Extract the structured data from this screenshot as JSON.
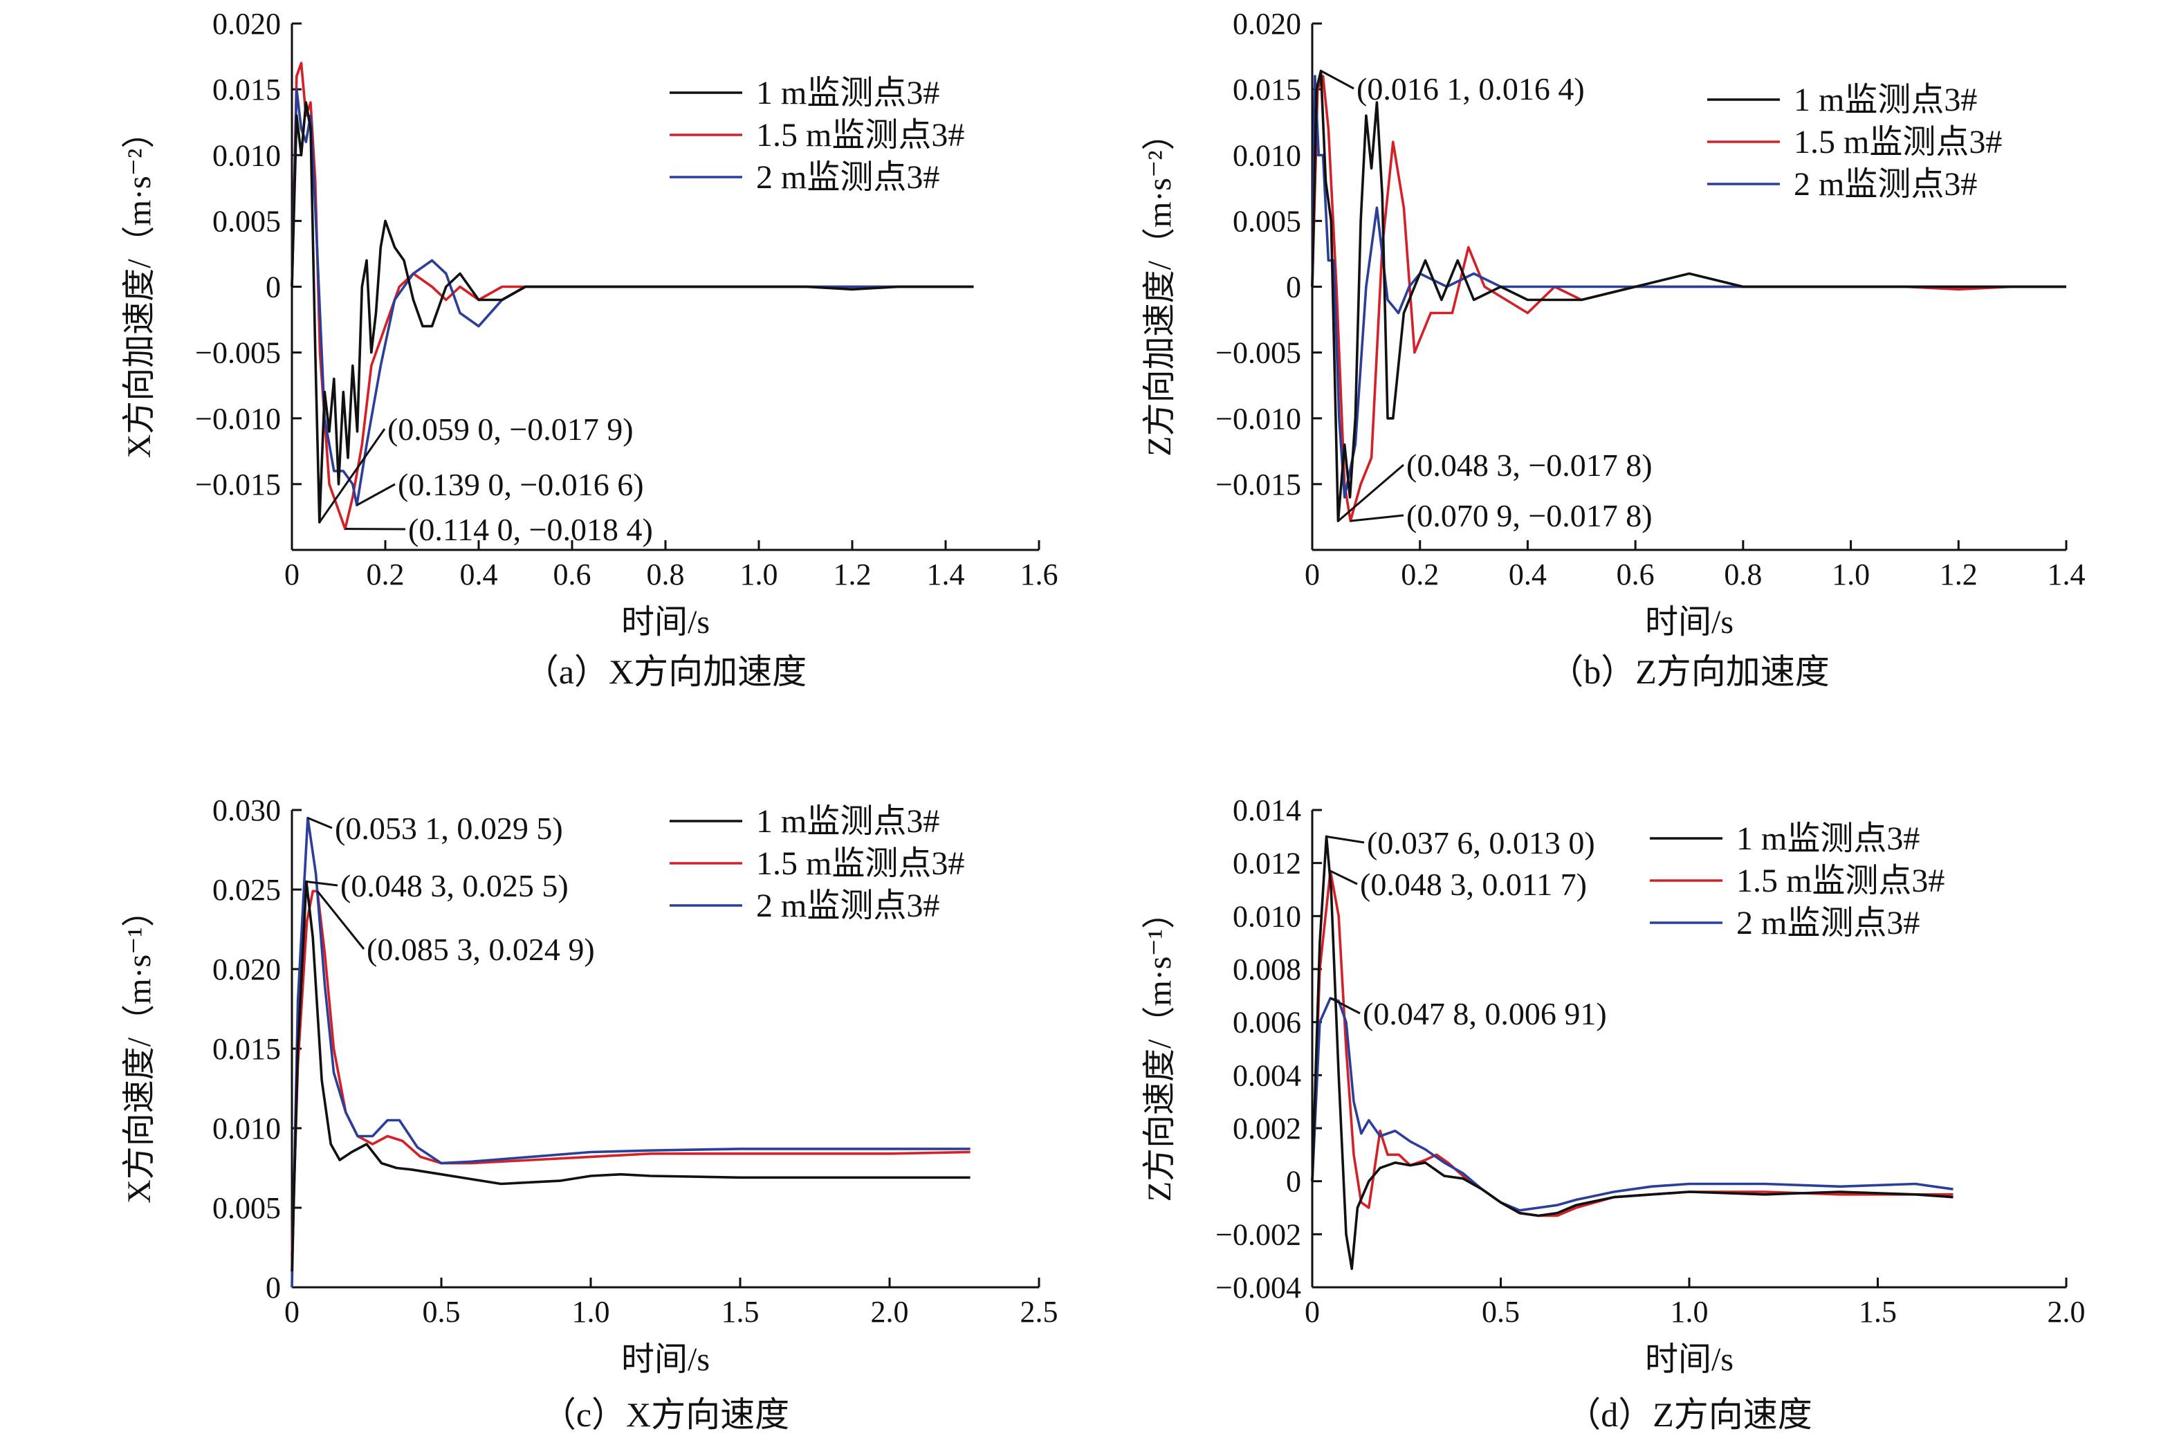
{
  "chart_data": [
    {
      "id": "a",
      "type": "line",
      "caption": "（a）X方向加速度",
      "xlabel": "时间/s",
      "ylabel": "X方向加速度/（m·s⁻²）",
      "xlim": [
        0,
        1.6
      ],
      "ylim": [
        -0.02,
        0.02
      ],
      "xticks": [
        0,
        0.2,
        0.4,
        0.6,
        0.8,
        1.0,
        1.2,
        1.4,
        1.6
      ],
      "xticklabels": [
        "0",
        "0.2",
        "0.4",
        "0.6",
        "0.8",
        "1.0",
        "1.2",
        "1.4",
        "1.6"
      ],
      "yticks": [
        -0.015,
        -0.01,
        -0.005,
        0,
        0.005,
        0.01,
        0.015,
        0.02
      ],
      "yticklabels": [
        "−0.015",
        "−0.010",
        "−0.005",
        "0",
        "0.005",
        "0.010",
        "0.015",
        "0.020"
      ],
      "legend_position": "top-right",
      "series": [
        {
          "name": "1 m监测点3#",
          "color": "#111111",
          "x": [
            0,
            0.01,
            0.02,
            0.03,
            0.04,
            0.05,
            0.059,
            0.07,
            0.08,
            0.09,
            0.1,
            0.11,
            0.12,
            0.13,
            0.14,
            0.15,
            0.16,
            0.17,
            0.18,
            0.19,
            0.2,
            0.22,
            0.24,
            0.26,
            0.28,
            0.3,
            0.33,
            0.36,
            0.4,
            0.45,
            0.5,
            0.55,
            0.6,
            0.7,
            0.8,
            0.9,
            1.0,
            1.1,
            1.2,
            1.3,
            1.4,
            1.46
          ],
          "y": [
            0.0,
            0.013,
            0.01,
            0.014,
            0.012,
            -0.005,
            -0.0179,
            -0.008,
            -0.011,
            -0.007,
            -0.015,
            -0.008,
            -0.013,
            -0.006,
            -0.011,
            0.0,
            0.002,
            -0.005,
            -0.002,
            0.003,
            0.005,
            0.003,
            0.002,
            -0.001,
            -0.003,
            -0.003,
            0.0,
            0.001,
            -0.001,
            -0.001,
            0.0,
            0.0,
            0.0,
            0.0,
            0.0,
            0.0,
            0.0,
            0.0,
            -0.0002,
            0.0,
            0.0,
            0.0
          ]
        },
        {
          "name": "1.5 m监测点3#",
          "color": "#d42027",
          "x": [
            0,
            0.01,
            0.02,
            0.03,
            0.04,
            0.05,
            0.06,
            0.08,
            0.1,
            0.114,
            0.13,
            0.15,
            0.17,
            0.2,
            0.23,
            0.26,
            0.3,
            0.33,
            0.36,
            0.4,
            0.45,
            0.5,
            0.6,
            0.7,
            0.8,
            0.9,
            1.0,
            1.1,
            1.2,
            1.3,
            1.4,
            1.46
          ],
          "y": [
            0.0,
            0.016,
            0.017,
            0.013,
            0.014,
            0.008,
            -0.005,
            -0.015,
            -0.017,
            -0.0184,
            -0.016,
            -0.012,
            -0.006,
            -0.003,
            0.0,
            0.001,
            0.0,
            -0.001,
            0.0,
            -0.001,
            0.0,
            0.0,
            0.0,
            0.0,
            0.0,
            0.0,
            0.0,
            0.0,
            0.0,
            0.0,
            0.0,
            0.0
          ]
        },
        {
          "name": "2 m监测点3#",
          "color": "#2b3f99",
          "x": [
            0,
            0.01,
            0.02,
            0.03,
            0.04,
            0.05,
            0.07,
            0.09,
            0.11,
            0.13,
            0.139,
            0.16,
            0.19,
            0.22,
            0.26,
            0.3,
            0.33,
            0.36,
            0.4,
            0.45,
            0.5,
            0.6,
            0.7,
            0.8,
            0.9,
            1.0,
            1.1,
            1.2,
            1.3,
            1.4,
            1.46
          ],
          "y": [
            0.0,
            0.015,
            0.012,
            0.011,
            0.013,
            0.006,
            -0.01,
            -0.014,
            -0.014,
            -0.015,
            -0.0166,
            -0.012,
            -0.006,
            -0.001,
            0.001,
            0.002,
            0.001,
            -0.002,
            -0.003,
            -0.001,
            0.0,
            0.0,
            0.0,
            0.0,
            0.0,
            0.0,
            0.0,
            0.0,
            0.0,
            0.0,
            0.0
          ]
        }
      ],
      "annotations": [
        {
          "text": "(0.059 0, −0.017 9)",
          "x": 0.059,
          "y": -0.0179
        },
        {
          "text": "(0.139 0, −0.016 6)",
          "x": 0.139,
          "y": -0.0166
        },
        {
          "text": "(0.114 0, −0.018 4)",
          "x": 0.114,
          "y": -0.0184
        }
      ]
    },
    {
      "id": "b",
      "type": "line",
      "caption": "（b）Z方向加速度",
      "xlabel": "时间/s",
      "ylabel": "Z方向加速度/（m·s⁻²）",
      "xlim": [
        0,
        1.4
      ],
      "ylim": [
        -0.02,
        0.02
      ],
      "xticks": [
        0,
        0.2,
        0.4,
        0.6,
        0.8,
        1.0,
        1.2,
        1.4
      ],
      "xticklabels": [
        "0",
        "0.2",
        "0.4",
        "0.6",
        "0.8",
        "1.0",
        "1.2",
        "1.4"
      ],
      "yticks": [
        -0.015,
        -0.01,
        -0.005,
        0,
        0.005,
        0.01,
        0.015,
        0.02
      ],
      "yticklabels": [
        "−0.015",
        "−0.010",
        "−0.005",
        "0",
        "0.005",
        "0.010",
        "0.015",
        "0.020"
      ],
      "legend_position": "top-right",
      "series": [
        {
          "name": "1 m监测点3#",
          "color": "#111111",
          "x": [
            0,
            0.008,
            0.016,
            0.025,
            0.035,
            0.048,
            0.06,
            0.07,
            0.08,
            0.09,
            0.1,
            0.11,
            0.12,
            0.13,
            0.14,
            0.15,
            0.17,
            0.19,
            0.21,
            0.24,
            0.27,
            0.3,
            0.35,
            0.4,
            0.45,
            0.5,
            0.6,
            0.7,
            0.8,
            0.9,
            1.0,
            1.1,
            1.2,
            1.3,
            1.4
          ],
          "y": [
            0.0,
            0.015,
            0.0164,
            0.008,
            0.005,
            -0.0178,
            -0.012,
            -0.016,
            -0.01,
            0.005,
            0.013,
            0.009,
            0.014,
            0.007,
            -0.01,
            -0.01,
            -0.002,
            0.0,
            0.002,
            -0.001,
            0.002,
            -0.001,
            0.0,
            -0.001,
            -0.001,
            -0.001,
            0.0,
            0.001,
            0.0,
            0.0,
            0.0,
            0.0,
            0.0,
            0.0,
            0.0
          ]
        },
        {
          "name": "1.5 m监测点3#",
          "color": "#d42027",
          "x": [
            0,
            0.01,
            0.02,
            0.03,
            0.045,
            0.06,
            0.0709,
            0.09,
            0.11,
            0.13,
            0.15,
            0.17,
            0.19,
            0.22,
            0.26,
            0.29,
            0.32,
            0.36,
            0.4,
            0.45,
            0.5,
            0.6,
            0.7,
            0.8,
            0.9,
            1.0,
            1.1,
            1.2,
            1.3,
            1.4
          ],
          "y": [
            0.0,
            0.015,
            0.016,
            0.012,
            0.0,
            -0.015,
            -0.0178,
            -0.015,
            -0.013,
            0.003,
            0.011,
            0.006,
            -0.005,
            -0.002,
            -0.002,
            0.003,
            0.0,
            -0.001,
            -0.002,
            0.0,
            -0.001,
            0.0,
            0.0,
            0.0,
            0.0,
            0.0,
            0.0,
            -0.0002,
            0.0,
            0.0
          ]
        },
        {
          "name": "2 m监测点3#",
          "color": "#2b3f99",
          "x": [
            0,
            0.005,
            0.012,
            0.02,
            0.03,
            0.04,
            0.05,
            0.06,
            0.08,
            0.1,
            0.12,
            0.14,
            0.16,
            0.18,
            0.2,
            0.25,
            0.3,
            0.35,
            0.4,
            0.5,
            0.6,
            0.7,
            0.8,
            0.9,
            1.0,
            1.1,
            1.2,
            1.3,
            1.4
          ],
          "y": [
            0.0,
            0.016,
            0.01,
            0.01,
            0.002,
            0.002,
            -0.01,
            -0.016,
            -0.012,
            0.0,
            0.006,
            -0.001,
            -0.002,
            0.0,
            0.001,
            0.0,
            0.001,
            0.0,
            0.0,
            0.0,
            0.0,
            0.0,
            0.0,
            0.0,
            0.0,
            0.0,
            0.0,
            0.0,
            0.0
          ]
        }
      ],
      "annotations": [
        {
          "text": "(0.016 1, 0.016 4)",
          "x": 0.0161,
          "y": 0.0164
        },
        {
          "text": "(0.048 3, −0.017 8)",
          "x": 0.0483,
          "y": -0.0178
        },
        {
          "text": "(0.070 9, −0.017 8)",
          "x": 0.0709,
          "y": -0.0178
        }
      ]
    },
    {
      "id": "c",
      "type": "line",
      "caption": "（c）X方向速度",
      "xlabel": "时间/s",
      "ylabel": "X方向速度/（m·s⁻¹）",
      "xlim": [
        0,
        2.5
      ],
      "ylim": [
        0,
        0.03
      ],
      "xticks": [
        0,
        0.5,
        1.0,
        1.5,
        2.0,
        2.5
      ],
      "xticklabels": [
        "0",
        "0.5",
        "1.0",
        "1.5",
        "2.0",
        "2.5"
      ],
      "yticks": [
        0,
        0.005,
        0.01,
        0.015,
        0.02,
        0.025,
        0.03
      ],
      "yticklabels": [
        "0",
        "0.005",
        "0.010",
        "0.015",
        "0.020",
        "0.025",
        "0.030"
      ],
      "legend_position": "top-right",
      "series": [
        {
          "name": "1 m监测点3#",
          "color": "#111111",
          "x": [
            0,
            0.02,
            0.0483,
            0.07,
            0.1,
            0.13,
            0.16,
            0.2,
            0.25,
            0.3,
            0.35,
            0.4,
            0.5,
            0.6,
            0.7,
            0.8,
            0.9,
            1.0,
            1.1,
            1.2,
            1.5,
            2.0,
            2.27
          ],
          "y": [
            0.001,
            0.015,
            0.0255,
            0.022,
            0.013,
            0.009,
            0.008,
            0.0085,
            0.009,
            0.0078,
            0.0075,
            0.0074,
            0.0071,
            0.0068,
            0.0065,
            0.0066,
            0.0067,
            0.007,
            0.0071,
            0.007,
            0.0069,
            0.0069,
            0.0069
          ]
        },
        {
          "name": "1.5 m监测点3#",
          "color": "#d42027",
          "x": [
            0,
            0.02,
            0.05,
            0.07,
            0.0853,
            0.11,
            0.14,
            0.18,
            0.22,
            0.27,
            0.32,
            0.37,
            0.43,
            0.5,
            0.6,
            0.8,
            1.0,
            1.2,
            1.5,
            2.0,
            2.27
          ],
          "y": [
            0.002,
            0.014,
            0.023,
            0.0249,
            0.0249,
            0.021,
            0.015,
            0.011,
            0.0095,
            0.009,
            0.0095,
            0.0092,
            0.0082,
            0.0078,
            0.0078,
            0.008,
            0.0082,
            0.0084,
            0.0084,
            0.0084,
            0.0085
          ]
        },
        {
          "name": "2 m监测点3#",
          "color": "#2b3f99",
          "x": [
            0,
            0.02,
            0.0531,
            0.08,
            0.11,
            0.14,
            0.18,
            0.22,
            0.27,
            0.32,
            0.36,
            0.42,
            0.5,
            0.6,
            0.8,
            1.0,
            1.2,
            1.5,
            2.0,
            2.27
          ],
          "y": [
            0.0,
            0.018,
            0.0295,
            0.026,
            0.019,
            0.0135,
            0.011,
            0.0095,
            0.0095,
            0.0105,
            0.0105,
            0.0088,
            0.0078,
            0.0079,
            0.0082,
            0.0085,
            0.0086,
            0.0087,
            0.0087,
            0.0087
          ]
        }
      ],
      "annotations": [
        {
          "text": "(0.053 1, 0.029 5)",
          "x": 0.0531,
          "y": 0.0295
        },
        {
          "text": "(0.048 3, 0.025 5)",
          "x": 0.0483,
          "y": 0.0255
        },
        {
          "text": "(0.085 3, 0.024 9)",
          "x": 0.0853,
          "y": 0.0249
        }
      ]
    },
    {
      "id": "d",
      "type": "line",
      "caption": "（d）Z方向速度",
      "xlabel": "时间/s",
      "ylabel": "Z方向速度/（m·s⁻¹）",
      "xlim": [
        0,
        2.0
      ],
      "ylim": [
        -0.004,
        0.014
      ],
      "xticks": [
        0,
        0.5,
        1.0,
        1.5,
        2.0
      ],
      "xticklabels": [
        "0",
        "0.5",
        "1.0",
        "1.5",
        "2.0"
      ],
      "yticks": [
        -0.004,
        -0.002,
        0,
        0.002,
        0.004,
        0.006,
        0.008,
        0.01,
        0.012,
        0.014
      ],
      "yticklabels": [
        "−0.004",
        "−0.002",
        "0",
        "0.002",
        "0.004",
        "0.006",
        "0.008",
        "0.010",
        "0.012",
        "0.014"
      ],
      "legend_position": "top-right",
      "series": [
        {
          "name": "1 m监测点3#",
          "color": "#111111",
          "x": [
            0,
            0.02,
            0.0376,
            0.05,
            0.07,
            0.09,
            0.105,
            0.12,
            0.15,
            0.18,
            0.22,
            0.26,
            0.3,
            0.35,
            0.4,
            0.45,
            0.5,
            0.55,
            0.6,
            0.65,
            0.7,
            0.8,
            0.9,
            1.0,
            1.2,
            1.4,
            1.6,
            1.7
          ],
          "y": [
            0.0,
            0.009,
            0.013,
            0.011,
            0.004,
            -0.002,
            -0.0033,
            -0.001,
            0.0,
            0.0005,
            0.0007,
            0.0006,
            0.0007,
            0.0002,
            0.0001,
            -0.0003,
            -0.0008,
            -0.0012,
            -0.0013,
            -0.0012,
            -0.0009,
            -0.0006,
            -0.0005,
            -0.0004,
            -0.0005,
            -0.0004,
            -0.0005,
            -0.0006
          ]
        },
        {
          "name": "1.5 m监测点3#",
          "color": "#d42027",
          "x": [
            0,
            0.02,
            0.0483,
            0.07,
            0.09,
            0.11,
            0.13,
            0.15,
            0.18,
            0.2,
            0.23,
            0.26,
            0.3,
            0.33,
            0.36,
            0.4,
            0.45,
            0.5,
            0.55,
            0.6,
            0.65,
            0.7,
            0.8,
            0.9,
            1.0,
            1.2,
            1.4,
            1.6,
            1.7
          ],
          "y": [
            0.0,
            0.008,
            0.0117,
            0.01,
            0.005,
            0.001,
            -0.0008,
            -0.001,
            0.0019,
            0.001,
            0.001,
            0.0006,
            0.0008,
            0.001,
            0.0007,
            0.0002,
            -0.0003,
            -0.0008,
            -0.0012,
            -0.0013,
            -0.0013,
            -0.001,
            -0.0006,
            -0.0005,
            -0.0004,
            -0.0004,
            -0.0005,
            -0.0005,
            -0.0005
          ]
        },
        {
          "name": "2 m监测点3#",
          "color": "#2b3f99",
          "x": [
            0,
            0.02,
            0.0478,
            0.07,
            0.09,
            0.11,
            0.13,
            0.15,
            0.18,
            0.22,
            0.26,
            0.3,
            0.35,
            0.4,
            0.45,
            0.5,
            0.55,
            0.6,
            0.65,
            0.7,
            0.8,
            0.9,
            1.0,
            1.2,
            1.4,
            1.6,
            1.7
          ],
          "y": [
            0.0,
            0.006,
            0.0069,
            0.0068,
            0.006,
            0.003,
            0.0018,
            0.0023,
            0.0017,
            0.0019,
            0.0015,
            0.0012,
            0.0007,
            0.0003,
            -0.0003,
            -0.0008,
            -0.0011,
            -0.001,
            -0.0009,
            -0.0007,
            -0.0004,
            -0.0002,
            -0.0001,
            -0.0001,
            -0.0002,
            -0.0001,
            -0.0003
          ]
        }
      ],
      "annotations": [
        {
          "text": "(0.037 6, 0.013 0)",
          "x": 0.0376,
          "y": 0.013
        },
        {
          "text": "(0.048 3, 0.011 7)",
          "x": 0.0483,
          "y": 0.0117
        },
        {
          "text": "(0.047 8, 0.006 91)",
          "x": 0.0478,
          "y": 0.00691
        }
      ]
    }
  ]
}
